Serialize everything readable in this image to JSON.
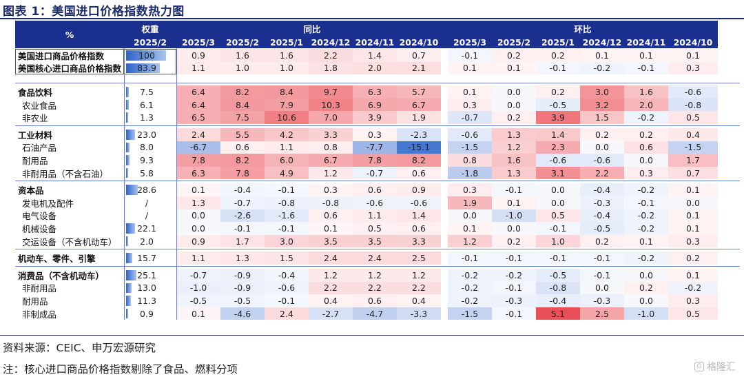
{
  "title": "图表 1：美国进口价格指数热力图",
  "source": "资料来源：CEIC、申万宏源研究",
  "note": "注：核心进口商品价格指数剔除了食品、燃料分项",
  "watermark": "格隆汇",
  "colors": {
    "header": "#1b2f8f",
    "pos": "#e8424a",
    "neg": "#3d6fcf"
  },
  "header": {
    "item_label": "%",
    "weight_label": "权重",
    "weight_sub": "2025/2",
    "yoy_label": "同比",
    "mom_label": "环比",
    "yoy_periods": [
      "2025/3",
      "2025/2",
      "2025/1",
      "2024/12",
      "2024/11",
      "2024/10"
    ],
    "mom_periods": [
      "2025/3",
      "2025/2",
      "2025/1",
      "2024/12",
      "2024/11",
      "2024/10"
    ]
  },
  "chart_data": {
    "type": "heatmap",
    "rows": [
      {
        "name": "美国进口商品价格指数",
        "bold": true,
        "weight": "100",
        "yoy": [
          0.9,
          1.6,
          1.6,
          2.2,
          1.4,
          0.7
        ],
        "mom": [
          -0.1,
          0.2,
          0.2,
          0.1,
          0.1,
          0.1
        ]
      },
      {
        "name": "美国核心进口商品价格指数",
        "bold": true,
        "weight": "83.9",
        "yoy": [
          1.1,
          1.0,
          1.0,
          1.8,
          2.0,
          2.1
        ],
        "mom": [
          0.1,
          0.1,
          -0.1,
          -0.2,
          -0.1,
          0.3
        ]
      },
      {
        "name": "食品饮料",
        "bold": true,
        "weight": "7.5",
        "yoy": [
          6.4,
          8.2,
          8.4,
          9.7,
          6.3,
          5.7
        ],
        "mom": [
          0.1,
          0.0,
          0.2,
          3.0,
          1.6,
          -0.6
        ]
      },
      {
        "name": "农业食品",
        "bold": false,
        "weight": "6.1",
        "yoy": [
          6.4,
          8.4,
          7.9,
          10.3,
          6.9,
          6.7
        ],
        "mom": [
          0.3,
          0.0,
          -0.5,
          3.2,
          2.0,
          -0.8
        ]
      },
      {
        "name": "非农业",
        "bold": false,
        "weight": "1.3",
        "yoy": [
          6.5,
          7.5,
          10.6,
          7.0,
          3.9,
          1.9
        ],
        "mom": [
          -0.7,
          0.2,
          3.9,
          1.5,
          -0.2,
          0.5
        ]
      },
      {
        "name": "工业材料",
        "bold": true,
        "weight": "23.0",
        "yoy": [
          2.4,
          5.5,
          4.2,
          3.3,
          0.3,
          -2.3
        ],
        "mom": [
          -0.6,
          1.3,
          1.4,
          0.2,
          0.2,
          0.4
        ]
      },
      {
        "name": "石油产品",
        "bold": false,
        "weight": "8.0",
        "yoy": [
          -6.7,
          0.6,
          1.1,
          0.8,
          -7.7,
          -15.1
        ],
        "mom": [
          -1.5,
          1.2,
          2.3,
          0.0,
          0.6,
          -1.5
        ]
      },
      {
        "name": "耐用品",
        "bold": false,
        "weight": "9.3",
        "yoy": [
          7.8,
          8.2,
          6.0,
          6.7,
          7.8,
          8.2
        ],
        "mom": [
          0.8,
          1.6,
          -0.6,
          -0.6,
          0.0,
          1.7
        ]
      },
      {
        "name": "非耐用品（不含石油）",
        "bold": false,
        "weight": "5.8",
        "yoy": [
          6.3,
          7.8,
          4.9,
          1.2,
          -0.7,
          0.6
        ],
        "mom": [
          -1.8,
          1.3,
          3.1,
          2.2,
          0.3,
          0.7
        ]
      },
      {
        "name": "资本品",
        "bold": true,
        "weight": "28.6",
        "yoy": [
          0.1,
          -0.4,
          -0.1,
          0.3,
          0.6,
          0.9
        ],
        "mom": [
          0.3,
          -0.1,
          0.0,
          -0.4,
          -0.2,
          0.1
        ]
      },
      {
        "name": "发电机及配件",
        "bold": false,
        "weight": "/",
        "yoy": [
          1.3,
          -0.7,
          -0.8,
          -0.8,
          -0.6,
          -0.6
        ],
        "mom": [
          1.9,
          0.1,
          0.0,
          -0.3,
          -0.1,
          0.0
        ]
      },
      {
        "name": "电气设备",
        "bold": false,
        "weight": "/",
        "yoy": [
          0.0,
          -2.6,
          -1.6,
          0.6,
          1.1,
          1.4
        ],
        "mom": [
          0.0,
          -1.0,
          0.5,
          -0.4,
          -0.2,
          0.1
        ]
      },
      {
        "name": "机械设备",
        "bold": false,
        "weight": "22.1",
        "yoy": [
          0.0,
          -0.1,
          -0.1,
          0.1,
          0.5,
          0.6
        ],
        "mom": [
          0.1,
          0.0,
          -0.1,
          -0.5,
          -0.2,
          0.1
        ]
      },
      {
        "name": "交运设备（不含机动车）",
        "bold": false,
        "weight": "2.0",
        "yoy": [
          0.9,
          1.7,
          3.0,
          3.5,
          3.5,
          3.3
        ],
        "mom": [
          1.2,
          0.2,
          1.0,
          0.2,
          0.1,
          0.3
        ]
      },
      {
        "name": "机动车、零件、引擎",
        "bold": true,
        "weight": "15.7",
        "yoy": [
          1.1,
          1.3,
          1.5,
          2.4,
          2.4,
          2.5
        ],
        "mom": [
          -0.1,
          -0.1,
          -0.1,
          -0.1,
          -0.2,
          0.2
        ]
      },
      {
        "name": "消费品（不含机动车）",
        "bold": true,
        "weight": "25.1",
        "yoy": [
          -0.7,
          -0.9,
          -0.4,
          1.2,
          1.2,
          1.2
        ],
        "mom": [
          -0.2,
          -0.2,
          -0.5,
          -0.1,
          0.0,
          0.1
        ]
      },
      {
        "name": "非耐用品",
        "bold": false,
        "weight": "13.0",
        "yoy": [
          -1.0,
          -0.9,
          -0.6,
          2.2,
          2.2,
          2.2
        ],
        "mom": [
          -0.2,
          -0.1,
          -0.8,
          0.0,
          0.2,
          -0.2
        ]
      },
      {
        "name": "耐用品",
        "bold": false,
        "weight": "11.3",
        "yoy": [
          -0.5,
          -0.5,
          -0.1,
          0.4,
          0.6,
          0.4
        ],
        "mom": [
          -0.2,
          -0.3,
          -0.4,
          -0.3,
          0.0,
          0.3
        ]
      },
      {
        "name": "非制成品",
        "bold": false,
        "weight": "0.9",
        "yoy": [
          0.1,
          -4.6,
          2.4,
          -2.7,
          -4.7,
          -3.3
        ],
        "mom": [
          -1.5,
          -0.1,
          5.1,
          2.5,
          -1.0,
          0.5
        ]
      }
    ]
  }
}
